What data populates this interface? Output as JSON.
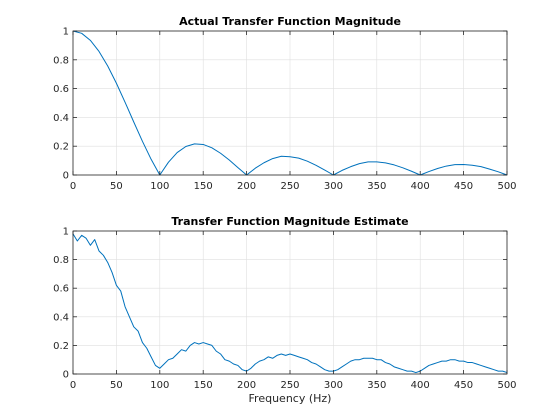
{
  "chart_data": [
    {
      "type": "line",
      "title": "Actual Transfer Function Magnitude",
      "xlabel": "",
      "ylabel": "",
      "xlim": [
        0,
        500
      ],
      "ylim": [
        0,
        1
      ],
      "xticks": [
        0,
        50,
        100,
        150,
        200,
        250,
        300,
        350,
        400,
        450,
        500
      ],
      "xtick_labels": [
        "0",
        "50",
        "100",
        "150",
        "200",
        "250",
        "300",
        "350",
        "400",
        "450",
        "500"
      ],
      "yticks": [
        0,
        0.2,
        0.4,
        0.6,
        0.8,
        1
      ],
      "ytick_labels": [
        "0",
        "0.2",
        "0.4",
        "0.6",
        "0.8",
        "1"
      ],
      "grid": true,
      "line_color": "#0072BD",
      "series": [
        {
          "x": [
            0,
            10,
            20,
            30,
            40,
            50,
            60,
            70,
            80,
            90,
            100,
            110,
            120,
            130,
            140,
            150,
            160,
            170,
            180,
            190,
            200,
            210,
            220,
            230,
            240,
            250,
            260,
            270,
            280,
            290,
            300,
            310,
            320,
            330,
            340,
            350,
            360,
            370,
            380,
            390,
            400,
            410,
            420,
            430,
            440,
            450,
            460,
            470,
            480,
            490,
            500
          ],
          "values": [
            1.0,
            0.984,
            0.935,
            0.858,
            0.757,
            0.637,
            0.505,
            0.368,
            0.234,
            0.109,
            0.0,
            0.089,
            0.156,
            0.198,
            0.216,
            0.212,
            0.189,
            0.151,
            0.104,
            0.051,
            0.0,
            0.047,
            0.085,
            0.114,
            0.13,
            0.127,
            0.117,
            0.096,
            0.067,
            0.034,
            0.0,
            0.032,
            0.058,
            0.079,
            0.091,
            0.091,
            0.084,
            0.07,
            0.05,
            0.026,
            0.0,
            0.024,
            0.045,
            0.062,
            0.072,
            0.073,
            0.068,
            0.058,
            0.041,
            0.022,
            0.0
          ]
        }
      ]
    },
    {
      "type": "line",
      "title": "Transfer Function Magnitude Estimate",
      "xlabel": "Frequency (Hz)",
      "ylabel": "",
      "xlim": [
        0,
        500
      ],
      "ylim": [
        0,
        1
      ],
      "xticks": [
        0,
        50,
        100,
        150,
        200,
        250,
        300,
        350,
        400,
        450,
        500
      ],
      "xtick_labels": [
        "0",
        "50",
        "100",
        "150",
        "200",
        "250",
        "300",
        "350",
        "400",
        "450",
        "500"
      ],
      "yticks": [
        0,
        0.2,
        0.4,
        0.6,
        0.8,
        1
      ],
      "ytick_labels": [
        "0",
        "0.2",
        "0.4",
        "0.6",
        "0.8",
        "1"
      ],
      "grid": true,
      "line_color": "#0072BD",
      "series": [
        {
          "x": [
            0,
            5,
            10,
            15,
            20,
            25,
            30,
            35,
            40,
            45,
            50,
            55,
            60,
            65,
            70,
            75,
            80,
            85,
            90,
            95,
            100,
            105,
            110,
            115,
            120,
            125,
            130,
            135,
            140,
            145,
            150,
            155,
            160,
            165,
            170,
            175,
            180,
            185,
            190,
            195,
            200,
            205,
            210,
            215,
            220,
            225,
            230,
            235,
            240,
            245,
            250,
            255,
            260,
            265,
            270,
            275,
            280,
            285,
            290,
            295,
            300,
            305,
            310,
            315,
            320,
            325,
            330,
            335,
            340,
            345,
            350,
            355,
            360,
            365,
            370,
            375,
            380,
            385,
            390,
            395,
            400,
            405,
            410,
            415,
            420,
            425,
            430,
            435,
            440,
            445,
            450,
            455,
            460,
            465,
            470,
            475,
            480,
            485,
            490,
            495,
            500
          ],
          "values": [
            0.98,
            0.93,
            0.97,
            0.95,
            0.9,
            0.94,
            0.86,
            0.83,
            0.78,
            0.71,
            0.62,
            0.58,
            0.47,
            0.4,
            0.33,
            0.3,
            0.22,
            0.18,
            0.12,
            0.06,
            0.04,
            0.07,
            0.1,
            0.11,
            0.14,
            0.17,
            0.16,
            0.2,
            0.22,
            0.21,
            0.22,
            0.21,
            0.2,
            0.16,
            0.14,
            0.1,
            0.09,
            0.07,
            0.06,
            0.03,
            0.02,
            0.04,
            0.07,
            0.09,
            0.1,
            0.12,
            0.11,
            0.13,
            0.14,
            0.13,
            0.14,
            0.13,
            0.12,
            0.11,
            0.1,
            0.08,
            0.07,
            0.05,
            0.03,
            0.02,
            0.02,
            0.03,
            0.05,
            0.07,
            0.09,
            0.1,
            0.1,
            0.11,
            0.11,
            0.11,
            0.1,
            0.1,
            0.08,
            0.07,
            0.05,
            0.04,
            0.03,
            0.02,
            0.02,
            0.01,
            0.02,
            0.04,
            0.06,
            0.07,
            0.08,
            0.09,
            0.09,
            0.1,
            0.1,
            0.09,
            0.09,
            0.08,
            0.08,
            0.07,
            0.06,
            0.05,
            0.04,
            0.03,
            0.02,
            0.02,
            0.01
          ]
        }
      ]
    }
  ]
}
